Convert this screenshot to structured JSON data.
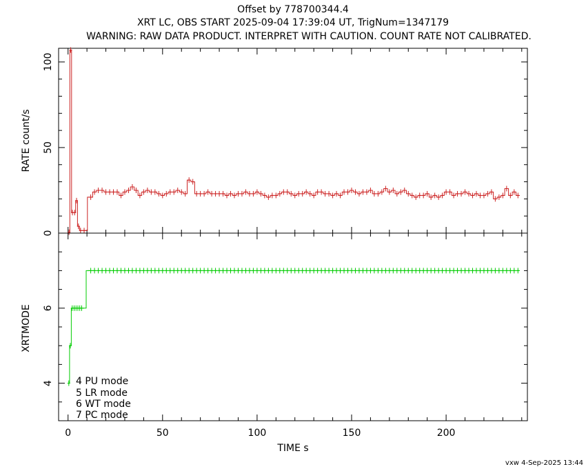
{
  "titles": {
    "line1": "Offset by 778700344.4",
    "line2": "XRT LC, OBS START 2025-09-04 17:39:04 UT, TrigNum=1347179",
    "line3": "WARNING: RAW DATA PRODUCT. INTERPRET WITH CAUTION. COUNT RATE NOT CALIBRATED."
  },
  "footer": {
    "stamp": "vxw  4-Sep-2025 13:44"
  },
  "chart_data": [
    {
      "type": "line",
      "ylabel": "RATE  count/s",
      "xlim": [
        -5,
        243
      ],
      "ylim": [
        0,
        108
      ],
      "yticks": [
        "0",
        "50",
        "100"
      ],
      "ytick_values": [
        0,
        50,
        100
      ],
      "color": "#cc2222",
      "series": [
        {
          "x": [
            0.5,
            1.4,
            2.3,
            3.5,
            4.5,
            5.5,
            6.6,
            8.5,
            12,
            14,
            16,
            18,
            20,
            22,
            24,
            26,
            28,
            30,
            32,
            34,
            36,
            38,
            40,
            42,
            44,
            46,
            48,
            50,
            52,
            54,
            56,
            58,
            60,
            62,
            64,
            66,
            68,
            70,
            72,
            74,
            76,
            78,
            80,
            82,
            84,
            86,
            88,
            90,
            92,
            94,
            96,
            98,
            100,
            102,
            104,
            106,
            108,
            110,
            112,
            114,
            116,
            118,
            120,
            122,
            124,
            126,
            128,
            130,
            132,
            134,
            136,
            138,
            140,
            142,
            144,
            146,
            148,
            150,
            152,
            154,
            156,
            158,
            160,
            162,
            164,
            166,
            168,
            170,
            172,
            174,
            176,
            178,
            180,
            182,
            184,
            186,
            188,
            190,
            192,
            194,
            196,
            198,
            200,
            202,
            204,
            206,
            208,
            210,
            212,
            214,
            216,
            218,
            220,
            222,
            224,
            226,
            228,
            230,
            232,
            234,
            236,
            238
          ],
          "y": [
            0.5,
            107,
            12,
            12,
            19,
            4,
            1.5,
            1.5,
            21,
            24,
            25,
            25,
            24,
            24,
            24,
            24,
            22,
            24,
            25,
            27,
            25,
            22,
            24,
            25,
            24,
            24,
            23,
            22,
            23,
            24,
            24,
            25,
            24,
            23,
            31,
            30,
            23,
            23,
            23,
            24,
            23,
            23,
            23,
            23,
            22,
            23,
            22,
            23,
            23,
            24,
            23,
            23,
            24,
            23,
            22,
            21,
            22,
            22,
            23,
            24,
            24,
            23,
            22,
            23,
            23,
            24,
            23,
            22,
            24,
            24,
            23,
            23,
            22,
            23,
            22,
            24,
            24,
            25,
            24,
            23,
            24,
            24,
            25,
            23,
            23,
            24,
            26,
            24,
            25,
            23,
            24,
            25,
            23,
            22,
            21,
            22,
            22,
            23,
            21,
            22,
            21,
            22,
            24,
            24,
            22,
            23,
            23,
            24,
            23,
            22,
            23,
            22,
            22,
            23,
            24,
            20,
            21,
            22,
            26,
            22,
            24,
            22
          ]
        }
      ]
    },
    {
      "type": "line",
      "ylabel": "XRTMODE",
      "xlabel": "TIME  s",
      "xlim": [
        -5,
        243
      ],
      "ylim": [
        3,
        8
      ],
      "xticks": [
        "0",
        "50",
        "100",
        "150",
        "200"
      ],
      "xtick_values": [
        0,
        50,
        100,
        150,
        200
      ],
      "yticks": [
        "4",
        "6"
      ],
      "ytick_values": [
        4,
        6
      ],
      "color": "#00cc00",
      "legend": [
        "4  PU  mode",
        "5  LR  mode",
        "6  WT  mode",
        "7  PC  mode"
      ],
      "series": [
        {
          "x": [
            0.4,
            1.2,
            2.2,
            3.2,
            4.2,
            5.2,
            6.2,
            7.2,
            12,
            14,
            16,
            18,
            20,
            22,
            24,
            26,
            28,
            30,
            32,
            34,
            36,
            38,
            40,
            42,
            44,
            46,
            48,
            50,
            52,
            54,
            56,
            58,
            60,
            62,
            64,
            66,
            68,
            70,
            72,
            74,
            76,
            78,
            80,
            82,
            84,
            86,
            88,
            90,
            92,
            94,
            96,
            98,
            100,
            102,
            104,
            106,
            108,
            110,
            112,
            114,
            116,
            118,
            120,
            122,
            124,
            126,
            128,
            130,
            132,
            134,
            136,
            138,
            140,
            142,
            144,
            146,
            148,
            150,
            152,
            154,
            156,
            158,
            160,
            162,
            164,
            166,
            168,
            170,
            172,
            174,
            176,
            178,
            180,
            182,
            184,
            186,
            188,
            190,
            192,
            194,
            196,
            198,
            200,
            202,
            204,
            206,
            208,
            210,
            212,
            214,
            216,
            218,
            220,
            222,
            224,
            226,
            228,
            230,
            232,
            234,
            236,
            238
          ],
          "y": [
            4,
            5,
            6,
            6,
            6,
            6,
            6,
            6,
            7,
            7,
            7,
            7,
            7,
            7,
            7,
            7,
            7,
            7,
            7,
            7,
            7,
            7,
            7,
            7,
            7,
            7,
            7,
            7,
            7,
            7,
            7,
            7,
            7,
            7,
            7,
            7,
            7,
            7,
            7,
            7,
            7,
            7,
            7,
            7,
            7,
            7,
            7,
            7,
            7,
            7,
            7,
            7,
            7,
            7,
            7,
            7,
            7,
            7,
            7,
            7,
            7,
            7,
            7,
            7,
            7,
            7,
            7,
            7,
            7,
            7,
            7,
            7,
            7,
            7,
            7,
            7,
            7,
            7,
            7,
            7,
            7,
            7,
            7,
            7,
            7,
            7,
            7,
            7,
            7,
            7,
            7,
            7,
            7,
            7,
            7,
            7,
            7,
            7,
            7,
            7,
            7,
            7,
            7,
            7,
            7,
            7,
            7,
            7,
            7,
            7,
            7,
            7,
            7,
            7,
            7,
            7,
            7,
            7,
            7,
            7,
            7,
            7
          ]
        }
      ]
    }
  ]
}
